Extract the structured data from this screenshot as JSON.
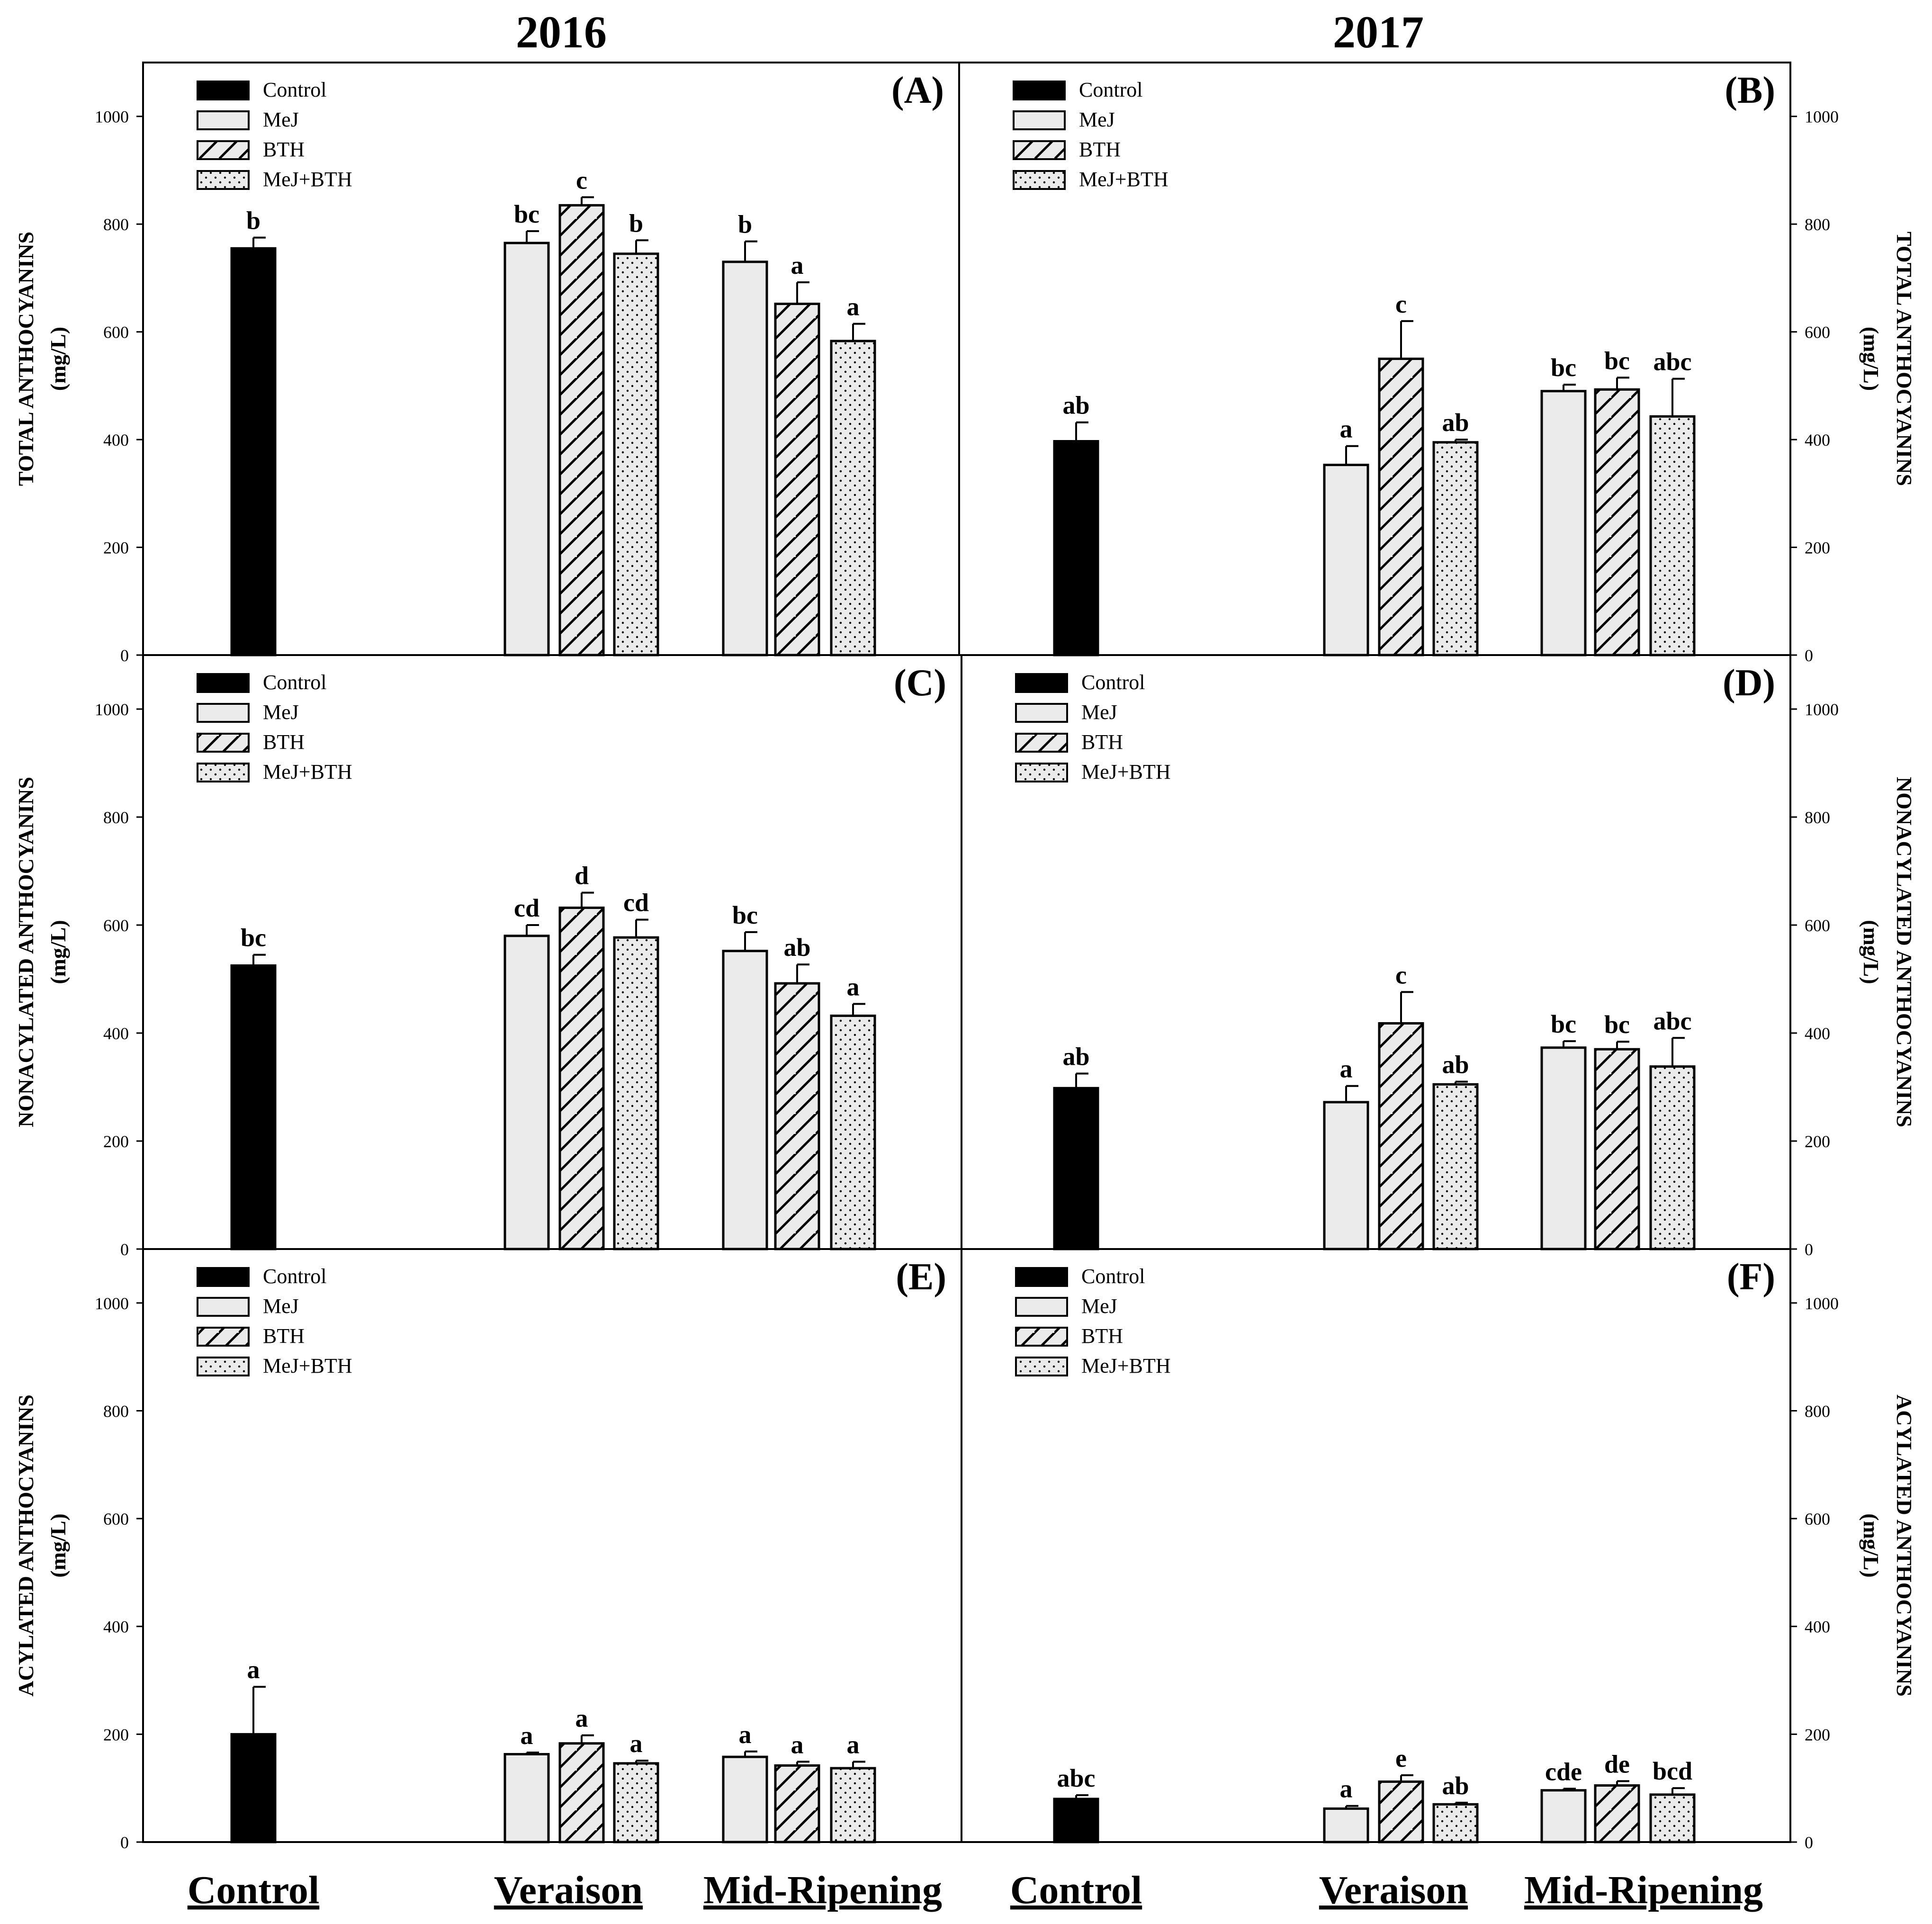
{
  "years": [
    "2016",
    "2017"
  ],
  "stages": [
    "Control",
    "Veraison",
    "Mid-Ripening"
  ],
  "legend": [
    "Control",
    "MeJ",
    "BTH",
    "MeJ+BTH"
  ],
  "chart_data": [
    {
      "type": "bar",
      "panel": "(A)",
      "year": "2016",
      "ylabel": "TOTAL ANTHOCYANINS",
      "yunit": "(mg/L)",
      "ylim": [
        0,
        1100
      ],
      "yticks": [
        0,
        200,
        400,
        600,
        800,
        1000
      ],
      "groups": [
        {
          "stage": "Control",
          "bars": [
            {
              "treatment": "Control",
              "value": 755,
              "err": 20,
              "sig": "b"
            }
          ]
        },
        {
          "stage": "Veraison",
          "bars": [
            {
              "treatment": "MeJ",
              "value": 765,
              "err": 22,
              "sig": "bc"
            },
            {
              "treatment": "BTH",
              "value": 835,
              "err": 15,
              "sig": "c"
            },
            {
              "treatment": "MeJ+BTH",
              "value": 745,
              "err": 25,
              "sig": "b"
            }
          ]
        },
        {
          "stage": "Mid-Ripening",
          "bars": [
            {
              "treatment": "MeJ",
              "value": 730,
              "err": 38,
              "sig": "b"
            },
            {
              "treatment": "BTH",
              "value": 652,
              "err": 40,
              "sig": "a"
            },
            {
              "treatment": "MeJ+BTH",
              "value": 583,
              "err": 32,
              "sig": "a"
            }
          ]
        }
      ]
    },
    {
      "type": "bar",
      "panel": "(B)",
      "year": "2017",
      "ylabel": "TOTAL ANTHOCYANINS",
      "yunit": "(mg/L)",
      "ylim": [
        0,
        1100
      ],
      "yticks": [
        0,
        200,
        400,
        600,
        800,
        1000
      ],
      "groups": [
        {
          "stage": "Control",
          "bars": [
            {
              "treatment": "Control",
              "value": 397,
              "err": 35,
              "sig": "ab"
            }
          ]
        },
        {
          "stage": "Veraison",
          "bars": [
            {
              "treatment": "MeJ",
              "value": 353,
              "err": 35,
              "sig": "a"
            },
            {
              "treatment": "BTH",
              "value": 550,
              "err": 70,
              "sig": "c"
            },
            {
              "treatment": "MeJ+BTH",
              "value": 395,
              "err": 5,
              "sig": "ab"
            }
          ]
        },
        {
          "stage": "Mid-Ripening",
          "bars": [
            {
              "treatment": "MeJ",
              "value": 490,
              "err": 12,
              "sig": "bc"
            },
            {
              "treatment": "BTH",
              "value": 493,
              "err": 22,
              "sig": "bc"
            },
            {
              "treatment": "MeJ+BTH",
              "value": 443,
              "err": 70,
              "sig": "abc"
            }
          ]
        }
      ]
    },
    {
      "type": "bar",
      "panel": "(C)",
      "year": "2016",
      "ylabel": "NONACYLATED ANTHOCYANINS",
      "yunit": "(mg/L)",
      "ylim": [
        0,
        1100
      ],
      "yticks": [
        0,
        200,
        400,
        600,
        800,
        1000
      ],
      "groups": [
        {
          "stage": "Control",
          "bars": [
            {
              "treatment": "Control",
              "value": 525,
              "err": 20,
              "sig": "bc"
            }
          ]
        },
        {
          "stage": "Veraison",
          "bars": [
            {
              "treatment": "MeJ",
              "value": 580,
              "err": 20,
              "sig": "cd"
            },
            {
              "treatment": "BTH",
              "value": 632,
              "err": 28,
              "sig": "d"
            },
            {
              "treatment": "MeJ+BTH",
              "value": 577,
              "err": 33,
              "sig": "cd"
            }
          ]
        },
        {
          "stage": "Mid-Ripening",
          "bars": [
            {
              "treatment": "MeJ",
              "value": 552,
              "err": 35,
              "sig": "bc"
            },
            {
              "treatment": "BTH",
              "value": 492,
              "err": 35,
              "sig": "ab"
            },
            {
              "treatment": "MeJ+BTH",
              "value": 432,
              "err": 22,
              "sig": "a"
            }
          ]
        }
      ]
    },
    {
      "type": "bar",
      "panel": "(D)",
      "year": "2017",
      "ylabel": "NONACYLATED ANTHOCYANINS",
      "yunit": "(mg/L)",
      "ylim": [
        0,
        1100
      ],
      "yticks": [
        0,
        200,
        400,
        600,
        800,
        1000
      ],
      "groups": [
        {
          "stage": "Control",
          "bars": [
            {
              "treatment": "Control",
              "value": 298,
              "err": 27,
              "sig": "ab"
            }
          ]
        },
        {
          "stage": "Veraison",
          "bars": [
            {
              "treatment": "MeJ",
              "value": 272,
              "err": 30,
              "sig": "a"
            },
            {
              "treatment": "BTH",
              "value": 418,
              "err": 58,
              "sig": "c"
            },
            {
              "treatment": "MeJ+BTH",
              "value": 305,
              "err": 5,
              "sig": "ab"
            }
          ]
        },
        {
          "stage": "Mid-Ripening",
          "bars": [
            {
              "treatment": "MeJ",
              "value": 373,
              "err": 12,
              "sig": "bc"
            },
            {
              "treatment": "BTH",
              "value": 370,
              "err": 14,
              "sig": "bc"
            },
            {
              "treatment": "MeJ+BTH",
              "value": 338,
              "err": 53,
              "sig": "abc"
            }
          ]
        }
      ]
    },
    {
      "type": "bar",
      "panel": "(E)",
      "year": "2016",
      "ylabel": "ACYLATED ANTHOCYANINS",
      "yunit": "(mg/L)",
      "ylim": [
        0,
        1100
      ],
      "yticks": [
        0,
        200,
        400,
        600,
        800,
        1000
      ],
      "groups": [
        {
          "stage": "Control",
          "bars": [
            {
              "treatment": "Control",
              "value": 200,
              "err": 88,
              "sig": "a"
            }
          ]
        },
        {
          "stage": "Veraison",
          "bars": [
            {
              "treatment": "MeJ",
              "value": 163,
              "err": 3,
              "sig": "a"
            },
            {
              "treatment": "BTH",
              "value": 183,
              "err": 15,
              "sig": "a"
            },
            {
              "treatment": "MeJ+BTH",
              "value": 146,
              "err": 5,
              "sig": "a"
            }
          ]
        },
        {
          "stage": "Mid-Ripening",
          "bars": [
            {
              "treatment": "MeJ",
              "value": 158,
              "err": 10,
              "sig": "a"
            },
            {
              "treatment": "BTH",
              "value": 142,
              "err": 7,
              "sig": "a"
            },
            {
              "treatment": "MeJ+BTH",
              "value": 137,
              "err": 12,
              "sig": "a"
            }
          ]
        }
      ]
    },
    {
      "type": "bar",
      "panel": "(F)",
      "year": "2017",
      "ylabel": "ACYLATED ANTHOCYANINS",
      "yunit": "(mg/L)",
      "ylim": [
        0,
        1100
      ],
      "yticks": [
        0,
        200,
        400,
        600,
        800,
        1000
      ],
      "groups": [
        {
          "stage": "Control",
          "bars": [
            {
              "treatment": "Control",
              "value": 80,
              "err": 7,
              "sig": "abc"
            }
          ]
        },
        {
          "stage": "Veraison",
          "bars": [
            {
              "treatment": "MeJ",
              "value": 62,
              "err": 5,
              "sig": "a"
            },
            {
              "treatment": "BTH",
              "value": 112,
              "err": 12,
              "sig": "e"
            },
            {
              "treatment": "MeJ+BTH",
              "value": 70,
              "err": 3,
              "sig": "ab"
            }
          ]
        },
        {
          "stage": "Mid-Ripening",
          "bars": [
            {
              "treatment": "MeJ",
              "value": 96,
              "err": 3,
              "sig": "cde"
            },
            {
              "treatment": "BTH",
              "value": 105,
              "err": 8,
              "sig": "de"
            },
            {
              "treatment": "MeJ+BTH",
              "value": 88,
              "err": 12,
              "sig": "bcd"
            }
          ]
        }
      ]
    }
  ]
}
